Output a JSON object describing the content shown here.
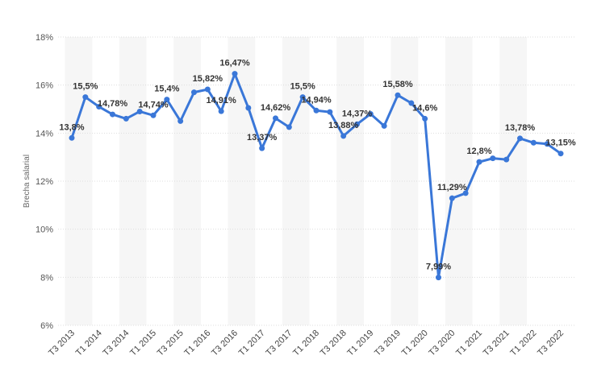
{
  "chart_data": {
    "type": "line",
    "y_label": "Brecha salarial",
    "categories": [
      "T3 2013",
      null,
      "T1 2014",
      null,
      "T3 2014",
      null,
      "T1 2015",
      null,
      "T3 2015",
      null,
      "T1 2016",
      null,
      "T3 2016",
      null,
      "T1 2017",
      null,
      "T3 2017",
      null,
      "T1 2018",
      null,
      "T3 2018",
      null,
      "T1 2019",
      null,
      "T3 2019",
      null,
      "T1 2020",
      null,
      "T3 2020",
      null,
      "T1 2021",
      null,
      "T3 2021",
      null,
      "T1 2022",
      null,
      "T3 2022"
    ],
    "series": [
      {
        "name": "Brecha salarial",
        "color": "#3a77d8",
        "values": [
          13.8,
          15.5,
          15.1,
          14.78,
          14.6,
          14.9,
          14.74,
          15.4,
          14.5,
          15.7,
          15.82,
          14.91,
          16.47,
          15.05,
          13.37,
          14.62,
          14.25,
          15.5,
          14.94,
          14.88,
          13.88,
          14.37,
          14.8,
          14.3,
          15.58,
          15.25,
          14.6,
          7.99,
          11.29,
          11.5,
          12.8,
          12.95,
          12.9,
          13.78,
          13.6,
          13.55,
          13.15
        ],
        "value_labels": [
          "13,8%",
          "15,5%",
          null,
          "14,78%",
          null,
          null,
          "14,74%",
          "15,4%",
          null,
          null,
          "15,82%",
          "14,91%",
          "16,47%",
          null,
          "13,37%",
          "14,62%",
          null,
          "15,5%",
          "14,94%",
          null,
          "13,88%",
          "14,37%",
          null,
          null,
          "15,58%",
          null,
          "14,6%",
          "7,99%",
          "11,29%",
          null,
          "12,8%",
          null,
          null,
          "13,78%",
          null,
          null,
          "13,15%"
        ]
      }
    ],
    "ylim": [
      6,
      18
    ],
    "yticks": [
      {
        "value": 6,
        "label": "6%"
      },
      {
        "value": 8,
        "label": "8%"
      },
      {
        "value": 10,
        "label": "10%"
      },
      {
        "value": 12,
        "label": "12%"
      },
      {
        "value": 14,
        "label": "14%"
      },
      {
        "value": 16,
        "label": "16%"
      },
      {
        "value": 18,
        "label": "18%"
      }
    ],
    "grid": true
  }
}
